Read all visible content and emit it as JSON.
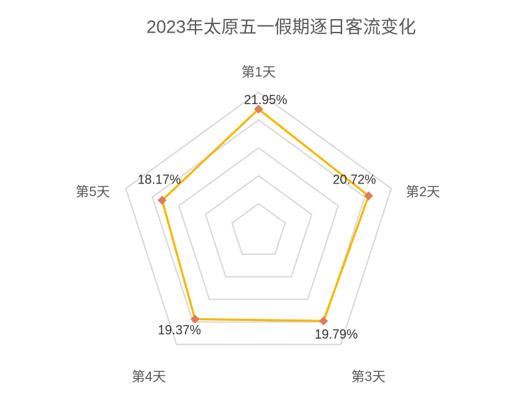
{
  "chart_data": {
    "type": "radar",
    "title": "2023年太原五一假期逐日客流变化",
    "categories": [
      "第1天",
      "第2天",
      "第3天",
      "第4天",
      "第5天"
    ],
    "series": [
      {
        "color": "#f5b800",
        "marker_color": "#e07b5a",
        "values": [
          21.95,
          20.72,
          19.79,
          19.37,
          18.17
        ],
        "value_labels": [
          "21.95%",
          "20.72%",
          "19.79%",
          "19.37%",
          "18.17%"
        ]
      }
    ],
    "ylim": [
      0,
      25
    ],
    "yticks": [
      0,
      5,
      10,
      15,
      20,
      25
    ],
    "grid": true
  }
}
